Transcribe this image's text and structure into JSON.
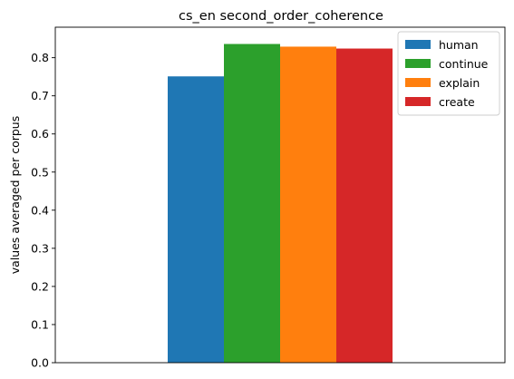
{
  "chart_data": {
    "type": "bar",
    "title": "cs_en second_order_coherence",
    "xlabel": "",
    "ylabel": "values averaged per corpus",
    "ylim": [
      0,
      0.88
    ],
    "yticks": [
      0.0,
      0.1,
      0.2,
      0.3,
      0.4,
      0.5,
      0.6,
      0.7,
      0.8
    ],
    "ytick_labels": [
      "0.0",
      "0.1",
      "0.2",
      "0.3",
      "0.4",
      "0.5",
      "0.6",
      "0.7",
      "0.8"
    ],
    "grid": false,
    "legend_position": "top-right",
    "categories": [
      ""
    ],
    "series": [
      {
        "name": "human",
        "values": [
          0.751
        ],
        "color": "#1f77b4"
      },
      {
        "name": "continue",
        "values": [
          0.836
        ],
        "color": "#2ca02c"
      },
      {
        "name": "explain",
        "values": [
          0.829
        ],
        "color": "#ff7f0e"
      },
      {
        "name": "create",
        "values": [
          0.824
        ],
        "color": "#d62728"
      }
    ]
  }
}
